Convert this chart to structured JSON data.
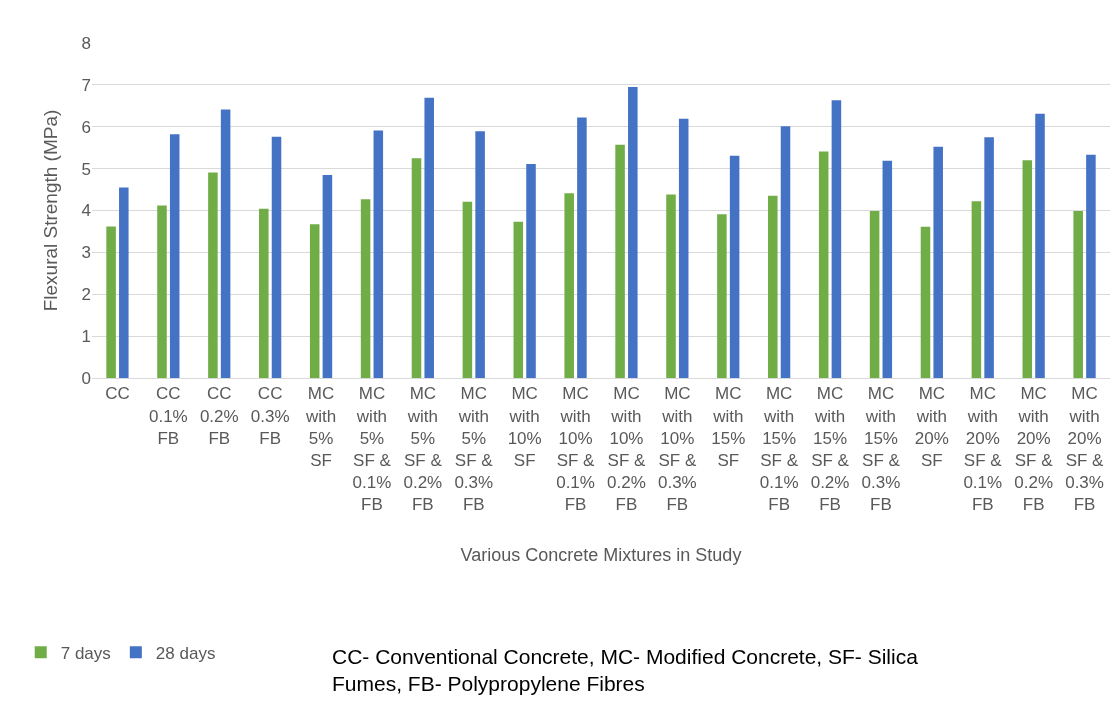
{
  "chart_data": {
    "type": "bar",
    "xlabel": "Various Concrete Mixtures in Study",
    "ylabel": "Flexural Strength (MPa)",
    "categories": [
      "CC",
      "CC 0.1% FB",
      "CC 0.2% FB",
      "CC 0.3% FB",
      "MC with 5% SF",
      "MC with 5% SF & 0.1% FB",
      "MC with 5% SF & 0.2% FB",
      "MC with 5% SF & 0.3% FB",
      "MC with 10% SF",
      "MC with 10% SF & 0.1% FB",
      "MC with 10% SF & 0.2% FB",
      "MC with 10% SF & 0.3% FB",
      "MC with 15% SF",
      "MC with 15% SF & 0.1% FB",
      "MC with 15% SF & 0.2% FB",
      "MC with 15% SF & 0.3% FB",
      "MC with 20% SF",
      "MC with 20% SF & 0.1% FB",
      "MC with 20% SF & 0.2% FB",
      "MC with 20% SF & 0.3% FB"
    ],
    "series": [
      {
        "name": "7 days",
        "color": "#70ad47",
        "values": [
          3.62,
          4.12,
          4.91,
          4.04,
          3.67,
          4.27,
          5.25,
          4.21,
          3.73,
          4.41,
          5.57,
          4.38,
          3.91,
          4.35,
          5.41,
          3.99,
          3.61,
          4.22,
          5.2,
          3.99
        ]
      },
      {
        "name": "28 days",
        "color": "#4472c4",
        "values": [
          4.55,
          5.82,
          6.41,
          5.76,
          4.85,
          5.91,
          6.69,
          5.89,
          5.11,
          6.22,
          6.95,
          6.19,
          5.31,
          6.01,
          6.63,
          5.19,
          5.52,
          5.75,
          6.31,
          5.33
        ]
      }
    ],
    "ylim": [
      0,
      8
    ],
    "yticks": [
      0,
      1,
      2,
      3,
      4,
      5,
      6,
      7,
      8
    ],
    "grid": "y",
    "legend": "bottom left",
    "annotations": [
      "CC- Conventional Concrete, MC- Modified Concrete, SF- Silica Fumes, FB- Polypropylene Fibres"
    ]
  }
}
